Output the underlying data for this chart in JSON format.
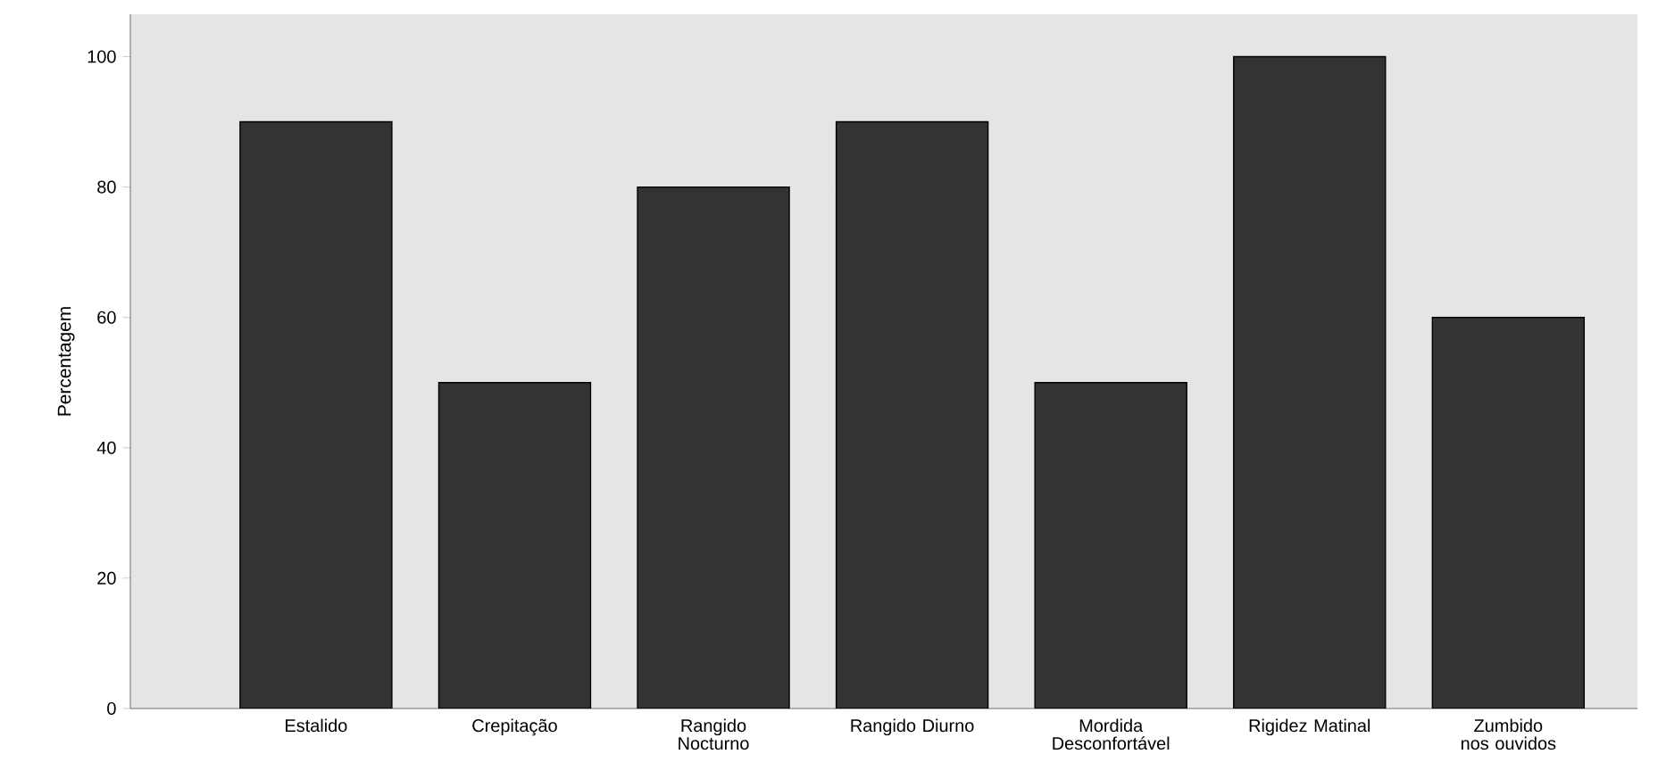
{
  "chart_data": {
    "type": "bar",
    "ylabel": "Percentagem",
    "categories": [
      "Estalido",
      "Crepitação",
      "Rangido Nocturno",
      "Rangido Diurno",
      "Mordida Desconfortável",
      "Rigidez Matinal",
      "Zumbido nos ouvidos"
    ],
    "values": [
      90,
      50,
      80,
      90,
      50,
      100,
      60
    ],
    "color": "#333333",
    "ylim": [
      0,
      106.5
    ],
    "yticks": [
      0,
      20,
      40,
      60,
      80,
      100
    ],
    "grid": false
  }
}
